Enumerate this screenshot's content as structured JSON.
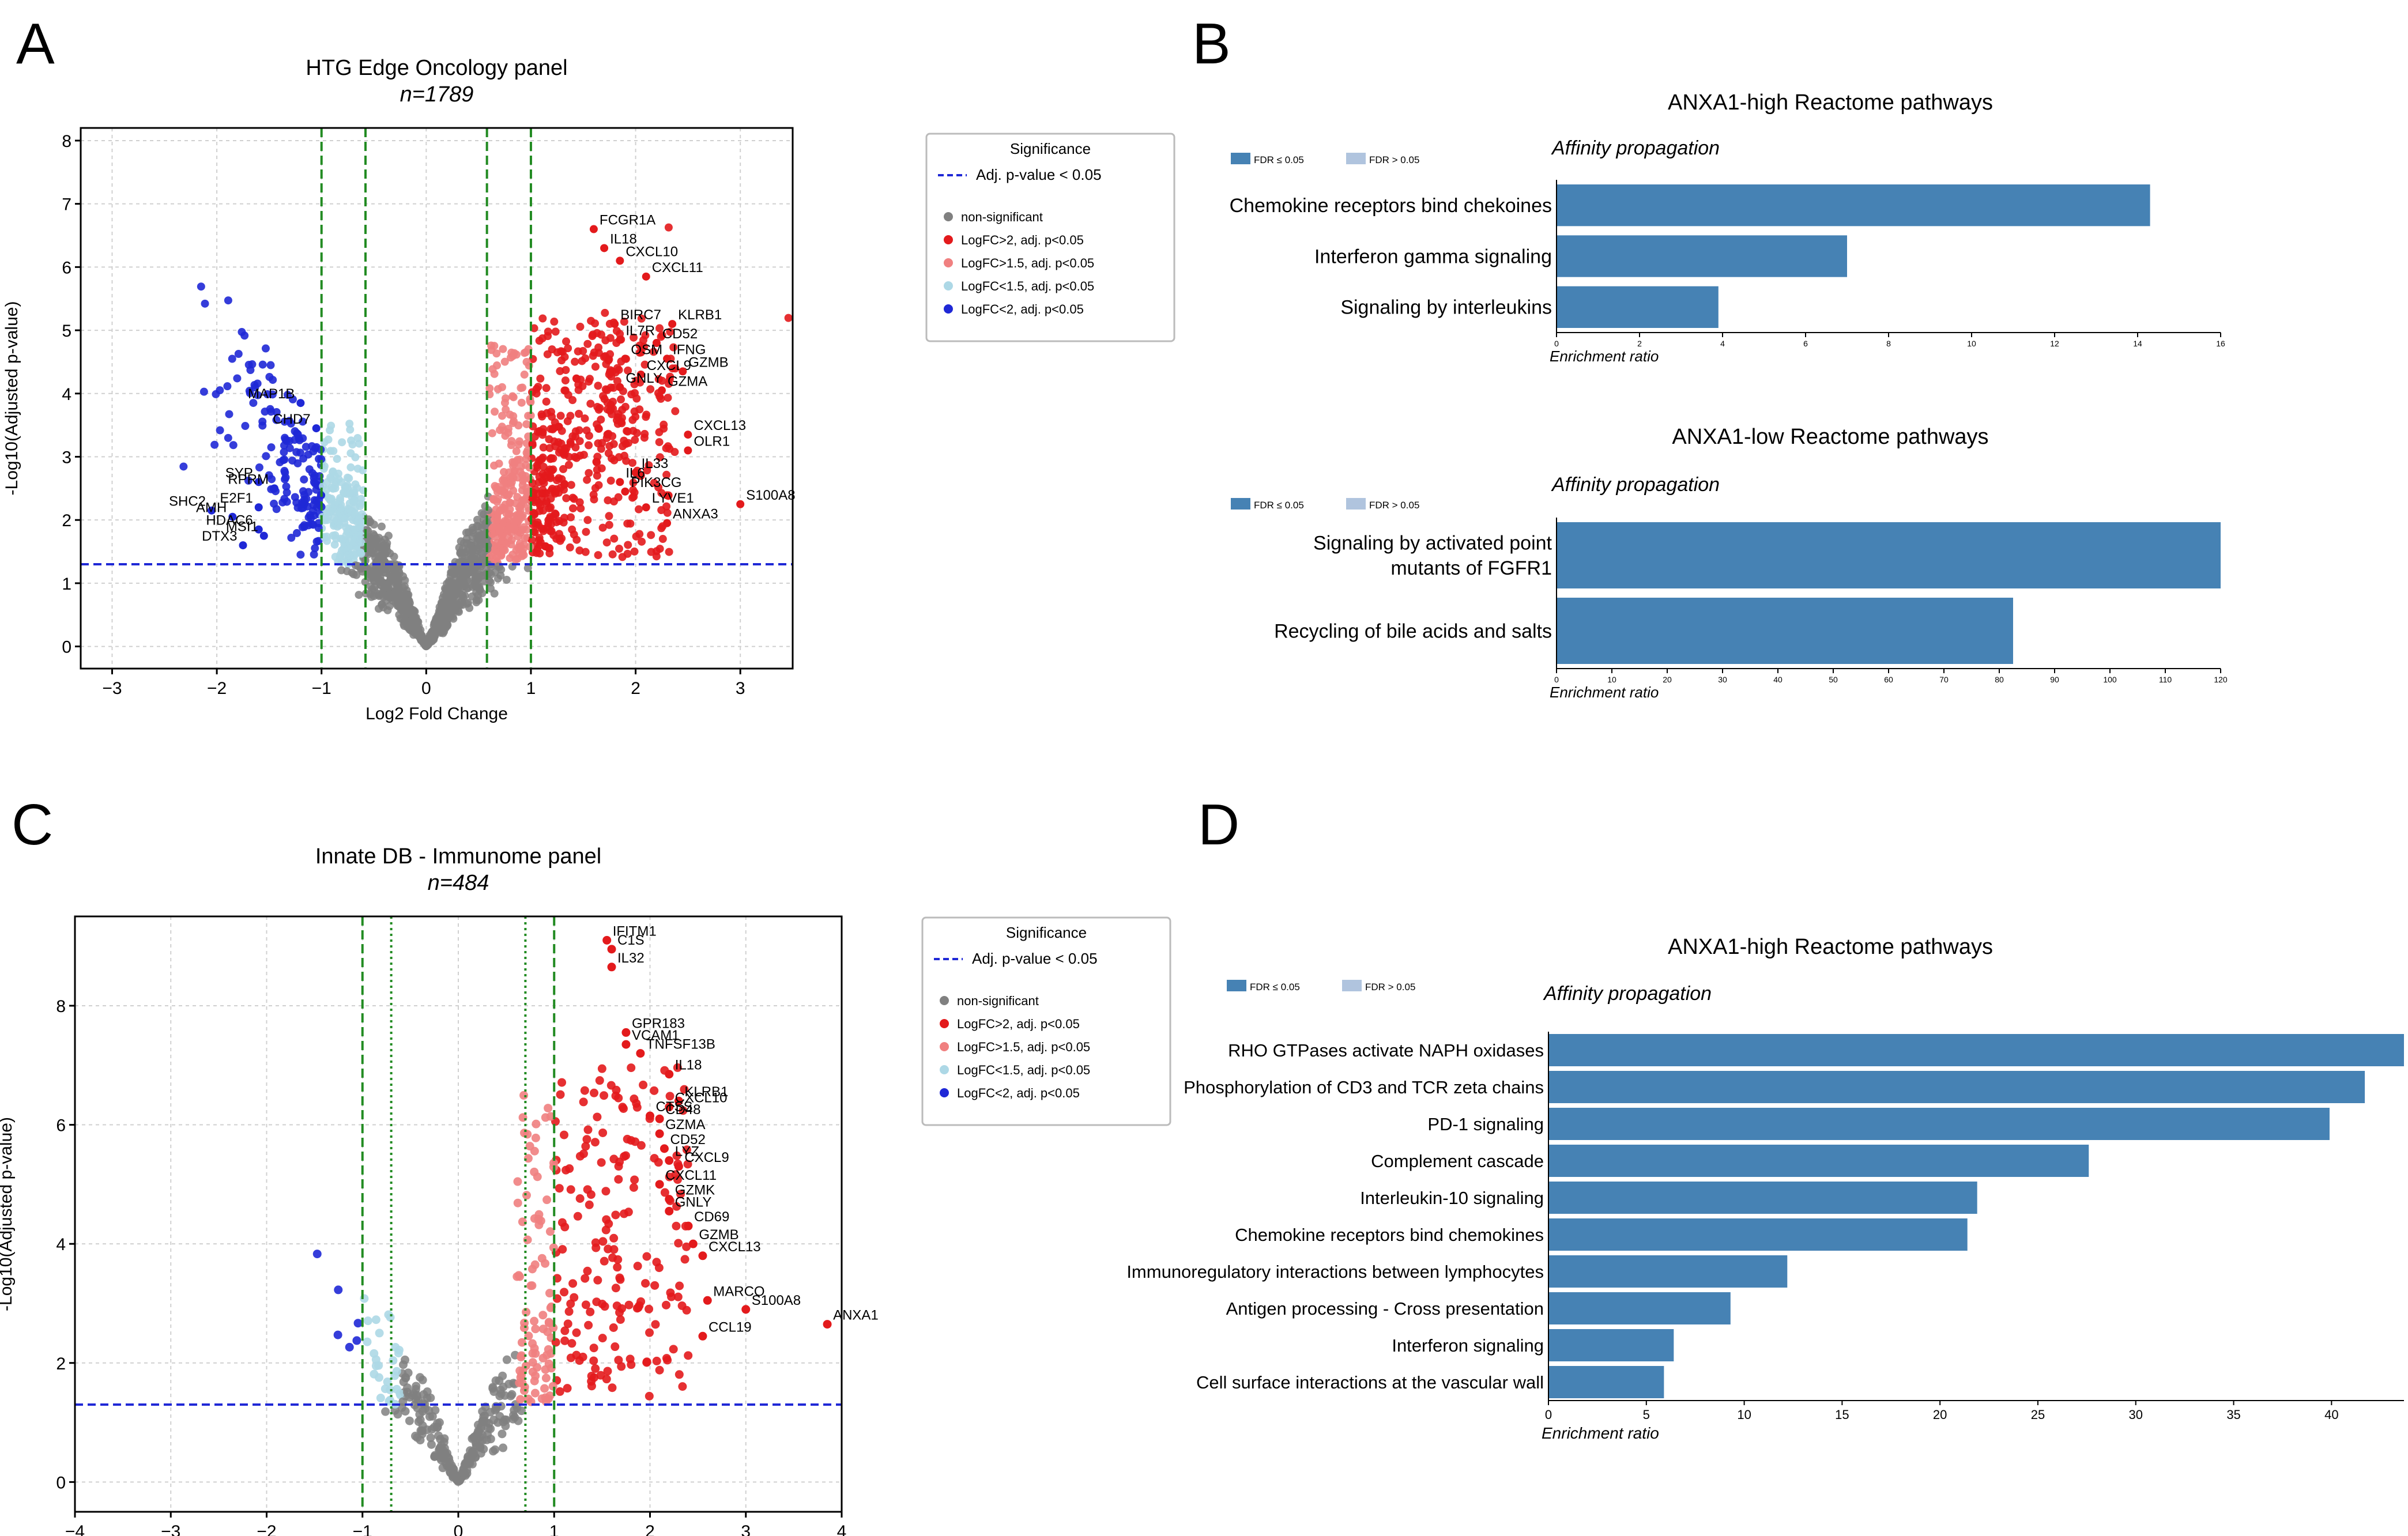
{
  "colors": {
    "nonsig": "#808080",
    "up2": "#e31a1c",
    "up15": "#f08080",
    "down15": "#add8e6",
    "down2": "#1f28d6",
    "bar": "#4682b4",
    "bar_light": "#b0c4de",
    "threshold": "#1f28d6",
    "vline": "#228b22"
  },
  "panel_labels": [
    "A",
    "B",
    "C",
    "D"
  ],
  "chart_data": [
    {
      "id": "A",
      "type": "scatter",
      "title": "HTG Edge Oncology panel",
      "subtitle": "n=1789",
      "xlabel": "Log2 Fold Change",
      "ylabel": "-Log10(Adjusted p-value)",
      "xlim": [
        -3.3,
        3.5
      ],
      "ylim": [
        -0.35,
        8.2
      ],
      "xticks": [
        -3,
        -2,
        -1,
        0,
        1,
        2,
        3
      ],
      "yticks": [
        0,
        1,
        2,
        3,
        4,
        5,
        6,
        7,
        8
      ],
      "grid": true,
      "hline": 1.3,
      "vlines_dashed": [
        -1,
        -0.58,
        0.58,
        1
      ],
      "vlines_dotted": [],
      "legend": {
        "title": "Significance",
        "threshold_label": "Adj. p-value < 0.05",
        "entries": [
          {
            "label": "non-significant",
            "key": "nonsig"
          },
          {
            "label": "LogFC>2, adj. p<0.05",
            "key": "up2"
          },
          {
            "label": "LogFC>1.5, adj. p<0.05",
            "key": "up15"
          },
          {
            "label": "LogFC<1.5, adj. p<0.05",
            "key": "down15"
          },
          {
            "label": "LogFC<2, adj. p<0.05",
            "key": "down2"
          }
        ]
      },
      "labeled_genes": [
        {
          "name": "FCGR1A",
          "x": 1.6,
          "y": 6.6
        },
        {
          "name": "IL18",
          "x": 1.7,
          "y": 6.3
        },
        {
          "name": "CXCL10",
          "x": 1.85,
          "y": 6.1
        },
        {
          "name": "CXCL11",
          "x": 2.1,
          "y": 5.85
        },
        {
          "name": "BIRC7",
          "x": 1.8,
          "y": 5.1
        },
        {
          "name": "KLRB1",
          "x": 2.35,
          "y": 5.1
        },
        {
          "name": "IL7R",
          "x": 1.85,
          "y": 4.85
        },
        {
          "name": "CD52",
          "x": 2.2,
          "y": 4.8
        },
        {
          "name": "OSM",
          "x": 1.9,
          "y": 4.55
        },
        {
          "name": "IFNG",
          "x": 2.3,
          "y": 4.55
        },
        {
          "name": "CXCL9",
          "x": 2.05,
          "y": 4.3
        },
        {
          "name": "GZMB",
          "x": 2.45,
          "y": 4.35
        },
        {
          "name": "GNLY",
          "x": 1.85,
          "y": 4.1
        },
        {
          "name": "GZMA",
          "x": 2.25,
          "y": 4.05
        },
        {
          "name": "CXCL13",
          "x": 2.5,
          "y": 3.35
        },
        {
          "name": "OLR1",
          "x": 2.5,
          "y": 3.1
        },
        {
          "name": "IL33",
          "x": 2.0,
          "y": 2.75
        },
        {
          "name": "IL6",
          "x": 1.85,
          "y": 2.6
        },
        {
          "name": "PIK3CG",
          "x": 1.9,
          "y": 2.45
        },
        {
          "name": "S100A8",
          "x": 3.0,
          "y": 2.25
        },
        {
          "name": "LYVE1",
          "x": 2.1,
          "y": 2.2
        },
        {
          "name": "ANXA3",
          "x": 2.3,
          "y": 1.95
        },
        {
          "name": "MAP1B",
          "x": -1.2,
          "y": 3.85
        },
        {
          "name": "CHD7",
          "x": -1.05,
          "y": 3.45
        },
        {
          "name": "SYP",
          "x": -1.6,
          "y": 2.6
        },
        {
          "name": "RPRM",
          "x": -1.45,
          "y": 2.5
        },
        {
          "name": "E2F1",
          "x": -1.6,
          "y": 2.2
        },
        {
          "name": "SHC2",
          "x": -2.05,
          "y": 2.15
        },
        {
          "name": "AMH",
          "x": -1.85,
          "y": 2.05
        },
        {
          "name": "HDAC6",
          "x": -1.6,
          "y": 1.85
        },
        {
          "name": "MSI1",
          "x": -1.55,
          "y": 1.75
        },
        {
          "name": "DTX3",
          "x": -1.75,
          "y": 1.6
        }
      ]
    },
    {
      "id": "C",
      "type": "scatter",
      "title": "Innate DB - Immunome panel",
      "subtitle": "n=484",
      "xlabel": "Log2 Fold Change",
      "ylabel": "-Log10(Adjusted p-value)",
      "xlim": [
        -4,
        4
      ],
      "ylim": [
        -0.5,
        9.5
      ],
      "xticks": [
        -4,
        -3,
        -2,
        -1,
        0,
        1,
        2,
        3,
        4
      ],
      "yticks": [
        0,
        2,
        4,
        6,
        8
      ],
      "grid": true,
      "hline": 1.3,
      "vlines_dashed": [
        -1,
        1
      ],
      "vlines_dotted": [
        -0.7,
        0.7
      ],
      "legend": {
        "title": "Significance",
        "threshold_label": "Adj. p-value < 0.05",
        "entries": [
          {
            "label": "non-significant",
            "key": "nonsig"
          },
          {
            "label": "LogFC>2, adj. p<0.05",
            "key": "up2"
          },
          {
            "label": "LogFC>1.5, adj. p<0.05",
            "key": "up15"
          },
          {
            "label": "LogFC<1.5, adj. p<0.05",
            "key": "down15"
          },
          {
            "label": "LogFC<2, adj. p<0.05",
            "key": "down2"
          }
        ]
      },
      "labeled_genes": [
        {
          "name": "IFITM1",
          "x": 1.55,
          "y": 9.1
        },
        {
          "name": "C1S",
          "x": 1.6,
          "y": 8.95
        },
        {
          "name": "IL32",
          "x": 1.6,
          "y": 8.65
        },
        {
          "name": "GPR183",
          "x": 1.75,
          "y": 7.55
        },
        {
          "name": "VCAM1",
          "x": 1.75,
          "y": 7.35
        },
        {
          "name": "TNFSF13B",
          "x": 1.9,
          "y": 7.2
        },
        {
          "name": "IL18",
          "x": 2.2,
          "y": 6.85
        },
        {
          "name": "KLRB1",
          "x": 2.3,
          "y": 6.4
        },
        {
          "name": "CXCL10",
          "x": 2.2,
          "y": 6.3
        },
        {
          "name": "CTSS",
          "x": 2.0,
          "y": 6.15
        },
        {
          "name": "CD48",
          "x": 2.1,
          "y": 6.1
        },
        {
          "name": "GZMA",
          "x": 2.1,
          "y": 5.85
        },
        {
          "name": "CD52",
          "x": 2.15,
          "y": 5.6
        },
        {
          "name": "LYZ",
          "x": 2.2,
          "y": 5.4
        },
        {
          "name": "CXCL9",
          "x": 2.3,
          "y": 5.3
        },
        {
          "name": "CXCL11",
          "x": 2.1,
          "y": 5.0
        },
        {
          "name": "GZMK",
          "x": 2.2,
          "y": 4.75
        },
        {
          "name": "GNLY",
          "x": 2.2,
          "y": 4.55
        },
        {
          "name": "CD69",
          "x": 2.4,
          "y": 4.3
        },
        {
          "name": "GZMB",
          "x": 2.45,
          "y": 4.0
        },
        {
          "name": "CXCL13",
          "x": 2.55,
          "y": 3.8
        },
        {
          "name": "MARCO",
          "x": 2.6,
          "y": 3.05
        },
        {
          "name": "S100A8",
          "x": 3.0,
          "y": 2.9
        },
        {
          "name": "CCL19",
          "x": 2.55,
          "y": 2.45
        },
        {
          "name": "ANXA1",
          "x": 3.85,
          "y": 2.65
        }
      ]
    },
    {
      "id": "B1",
      "type": "bar",
      "orientation": "horizontal",
      "title": "ANXA1-high Reactome pathways",
      "subtitle": "Affinity propagation",
      "xlabel": "Enrichment ratio",
      "legend": [
        {
          "label": "FDR ≤ 0.05",
          "key": "bar"
        },
        {
          "label": "FDR > 0.05",
          "key": "bar_light"
        }
      ],
      "xlim": [
        0,
        16
      ],
      "xticks": [
        0,
        2,
        4,
        6,
        8,
        10,
        12,
        14,
        16
      ],
      "categories": [
        "Chemokine receptors bind chekoines",
        "Interferon gamma signaling",
        "Signaling by interleukins"
      ],
      "values": [
        14.3,
        7.0,
        3.9
      ]
    },
    {
      "id": "B2",
      "type": "bar",
      "orientation": "horizontal",
      "title": "ANXA1-low Reactome pathways",
      "subtitle": "Affinity propagation",
      "xlabel": "Enrichment ratio",
      "legend": [
        {
          "label": "FDR ≤ 0.05",
          "key": "bar"
        },
        {
          "label": "FDR > 0.05",
          "key": "bar_light"
        }
      ],
      "xlim": [
        0,
        120
      ],
      "xticks": [
        0,
        10,
        20,
        30,
        40,
        50,
        60,
        70,
        80,
        90,
        100,
        110,
        120
      ],
      "categories": [
        "Signaling by activated point\nmutants of FGFR1",
        "Recycling of bile acids and salts"
      ],
      "values": [
        120,
        82.5
      ]
    },
    {
      "id": "D",
      "type": "bar",
      "orientation": "horizontal",
      "title": "ANXA1-high Reactome pathways",
      "subtitle": "Affinity propagation",
      "xlabel": "Enrichment ratio",
      "legend": [
        {
          "label": "FDR ≤ 0.05",
          "key": "bar"
        },
        {
          "label": "FDR > 0.05",
          "key": "bar_light"
        }
      ],
      "xlim": [
        0,
        43.7
      ],
      "xticks": [
        0,
        5,
        10,
        15,
        20,
        25,
        30,
        35,
        40
      ],
      "categories": [
        "RHO GTPases activate NAPH oxidases",
        "Phosphorylation of CD3 and TCR zeta chains",
        "PD-1 signaling",
        "Complement cascade",
        "Interleukin-10 signaling",
        "Chemokine receptors bind chemokines",
        "Immunoregulatory interactions between lymphocytes",
        "Antigen processing - Cross presentation",
        "Interferon signaling",
        "Cell surface interactions at the vascular wall"
      ],
      "values": [
        43.7,
        41.7,
        39.9,
        27.6,
        21.9,
        21.4,
        12.2,
        9.3,
        6.4,
        5.9
      ]
    }
  ]
}
